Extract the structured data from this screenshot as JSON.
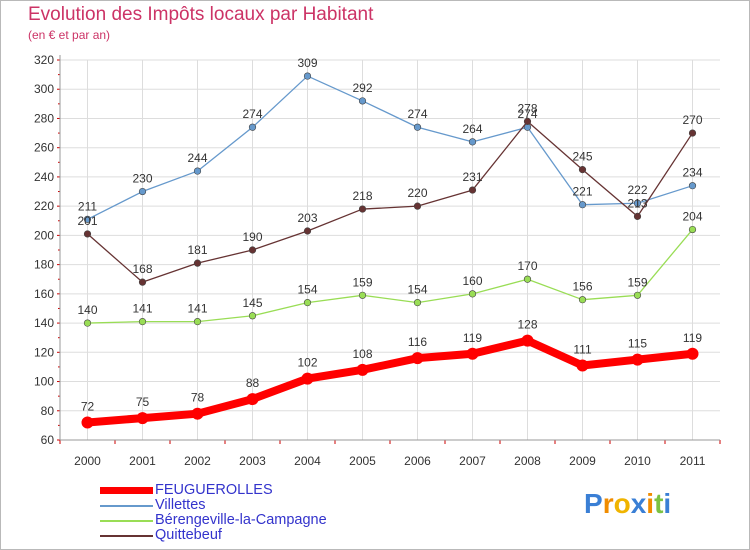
{
  "title": "Evolution des Impôts locaux par Habitant",
  "subtitle": "(en € et par an)",
  "logo": {
    "letters": [
      "P",
      "r",
      "o",
      "x",
      "i",
      "t",
      "i"
    ],
    "colors": [
      "#3a7fd5",
      "#f08c00",
      "#f0b400",
      "#3a7fd5",
      "#f08c00",
      "#7cc242",
      "#3a7fd5"
    ]
  },
  "chart_data": {
    "type": "line",
    "categories": [
      "2000",
      "2001",
      "2002",
      "2003",
      "2004",
      "2005",
      "2006",
      "2007",
      "2008",
      "2009",
      "2010",
      "2011"
    ],
    "ylim": [
      60,
      320
    ],
    "yticks": [
      "60",
      "80",
      "100",
      "120",
      "140",
      "160",
      "180",
      "200",
      "220",
      "240",
      "260",
      "280",
      "300",
      "320"
    ],
    "grid": true,
    "legend_position": "bottom-left",
    "series": [
      {
        "name": "FEUGUEROLLES",
        "color": "#ff0000",
        "values": [
          72,
          75,
          78,
          88,
          102,
          108,
          116,
          119,
          128,
          111,
          115,
          119
        ]
      },
      {
        "name": "Villettes",
        "color": "#6699cc",
        "values": [
          211,
          230,
          244,
          274,
          309,
          292,
          274,
          264,
          274,
          221,
          222,
          234
        ]
      },
      {
        "name": "Bérengeville-la-Campagne",
        "color": "#99dd55",
        "values": [
          140,
          141,
          141,
          145,
          154,
          159,
          154,
          160,
          170,
          156,
          159,
          204
        ]
      },
      {
        "name": "Quittebeuf",
        "color": "#663333",
        "values": [
          201,
          168,
          181,
          190,
          203,
          218,
          220,
          231,
          278,
          245,
          213,
          270
        ]
      }
    ],
    "data_labels": [
      [
        "72",
        "75",
        "78",
        "88",
        "102",
        "108",
        "116",
        "119",
        "128",
        "111",
        "115",
        "119"
      ],
      [
        "211",
        "230",
        "244",
        "274",
        "309",
        "292",
        "274",
        "264",
        "274",
        "221",
        "222",
        "234"
      ],
      [
        "140",
        "141",
        "141",
        "145",
        "154",
        "159",
        "154",
        "160",
        "170",
        "156",
        "159",
        "204"
      ],
      [
        "201",
        "168",
        "181",
        "190",
        "203",
        "218",
        "220",
        "231",
        "278",
        "245",
        "213",
        "270"
      ]
    ]
  }
}
